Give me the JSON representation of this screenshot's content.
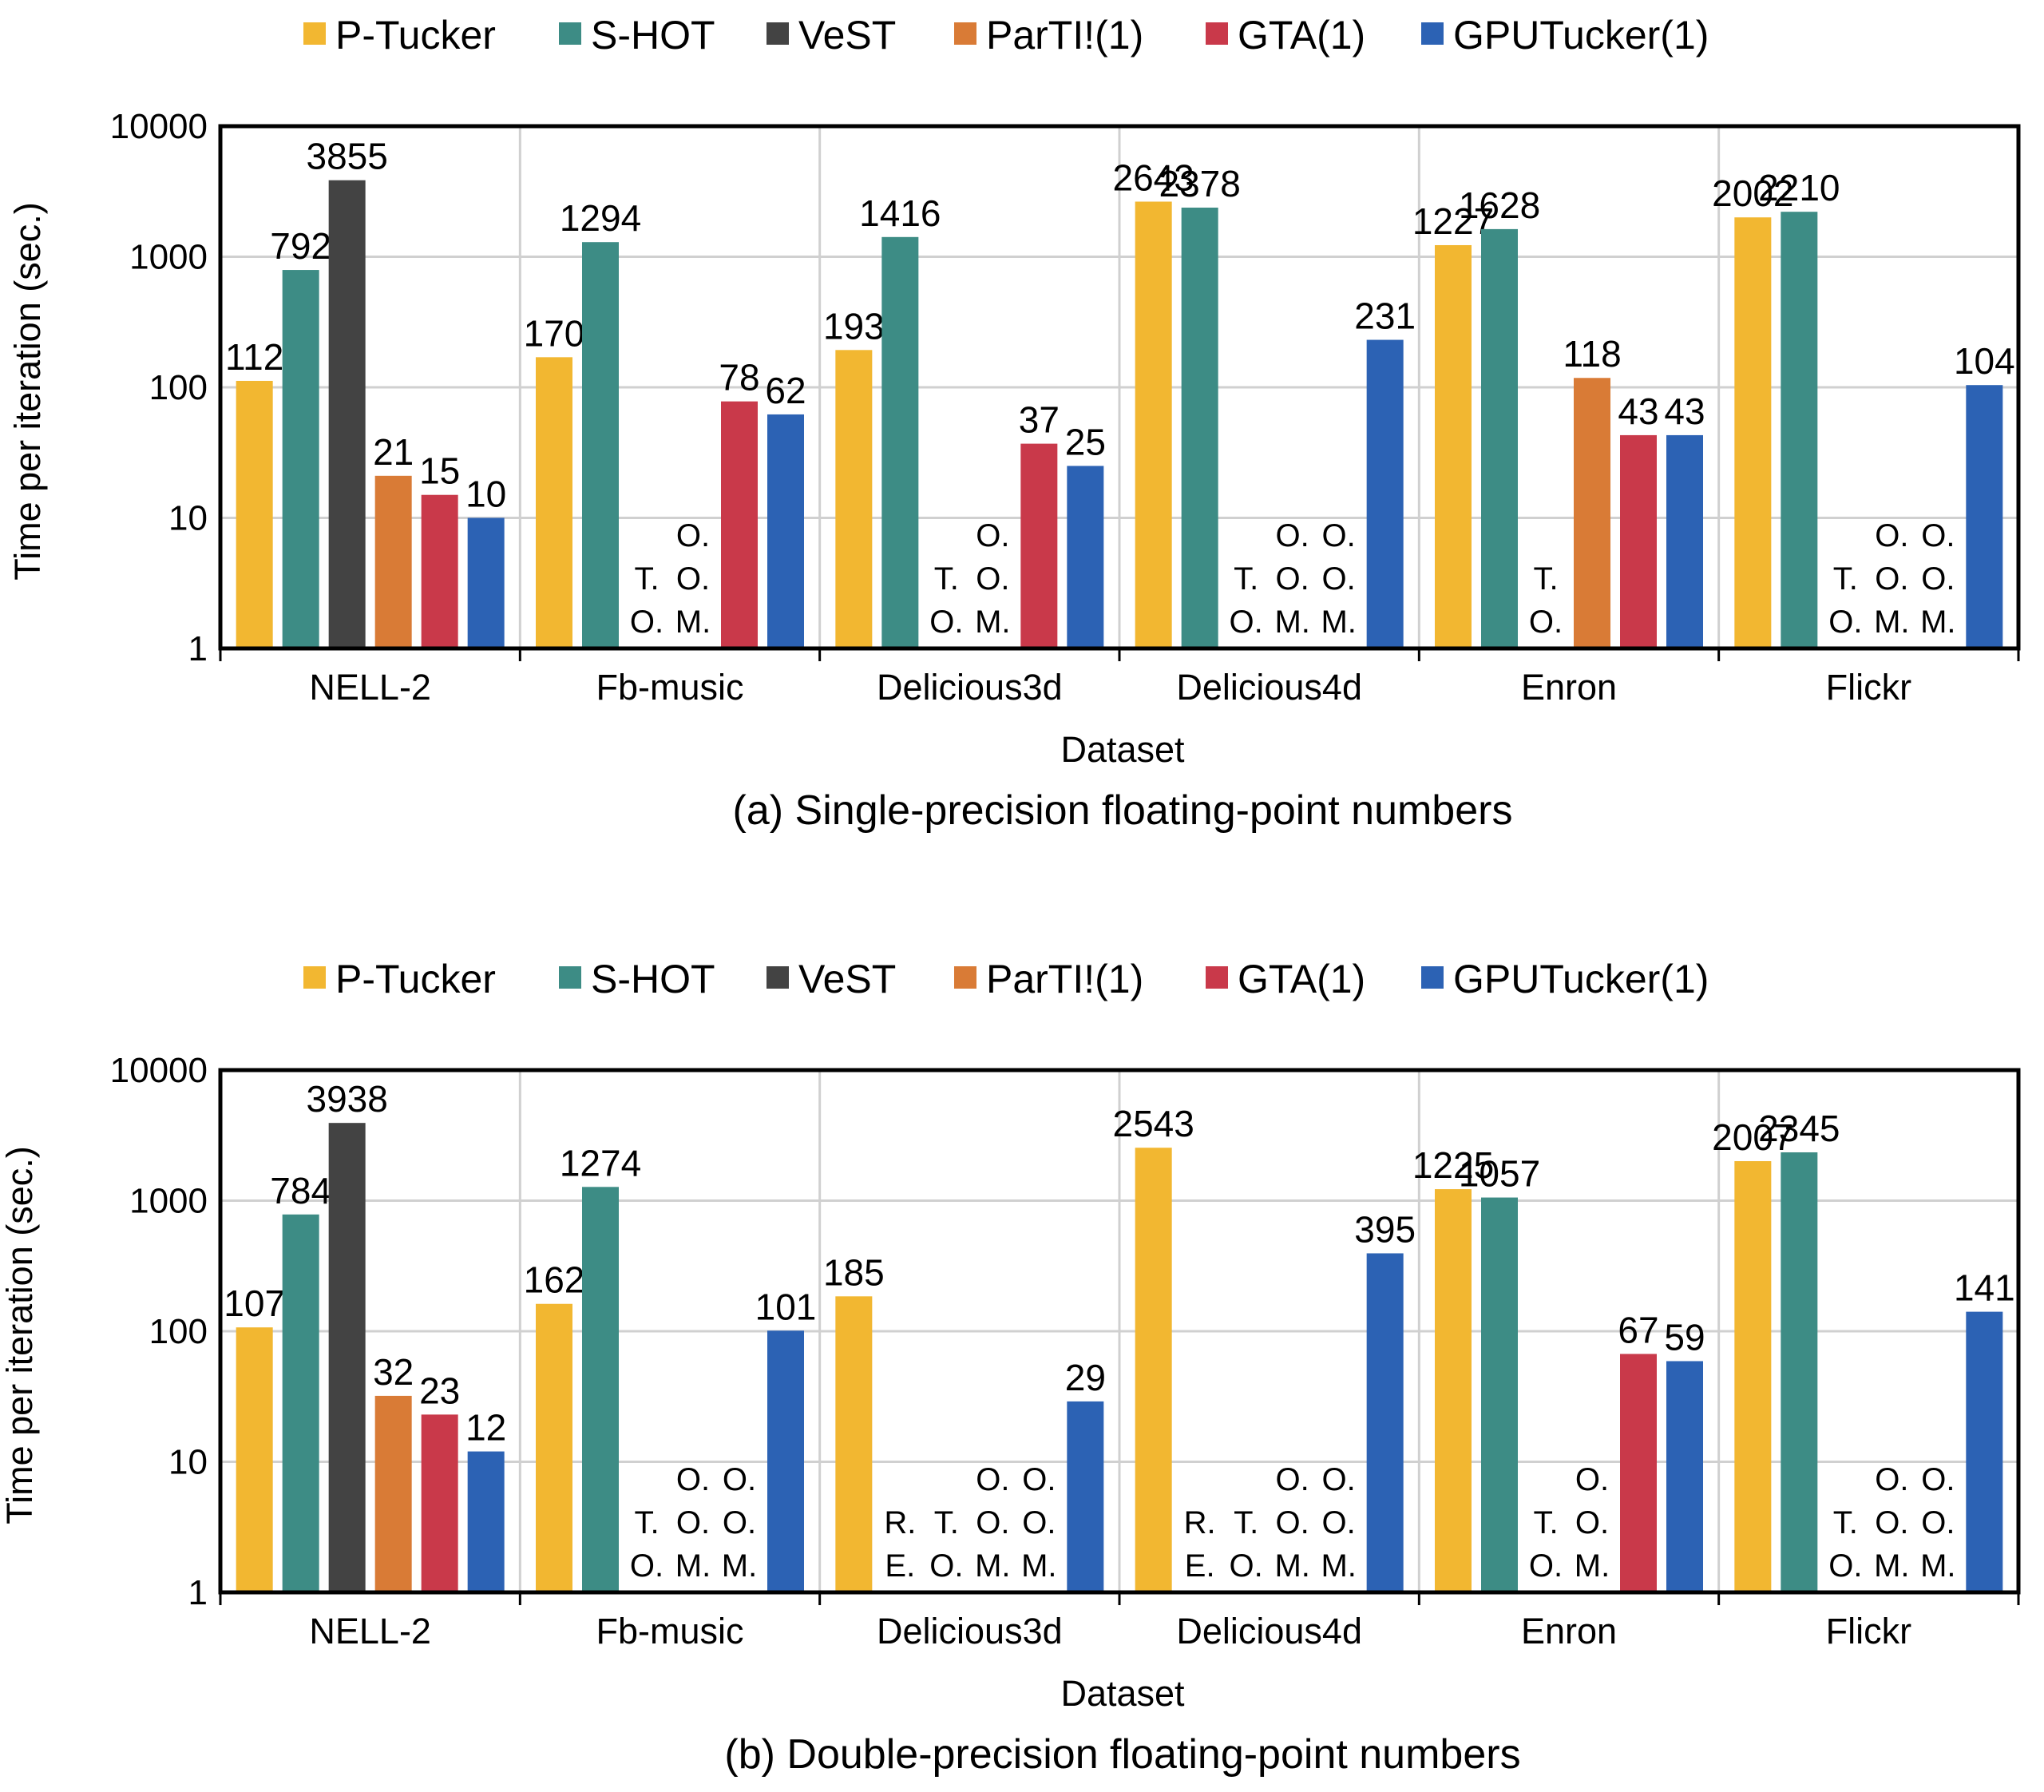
{
  "colors": {
    "P-Tucker": "#f2b731",
    "S-HOT": "#3d8c85",
    "VeST": "#434343",
    "ParTI!(1)": "#d97b36",
    "GTA(1)": "#c9394a",
    "GPUTucker(1)": "#2c62b4"
  },
  "chart_data": [
    {
      "id": "a",
      "type": "bar",
      "caption": "(a) Single-precision floating-point numbers",
      "xlabel": "Dataset",
      "ylabel": "Time per iteration (sec.)",
      "yscale": "log",
      "ylim": [
        1,
        10000
      ],
      "yticks": [
        "1",
        "10",
        "100",
        "1000",
        "10000"
      ],
      "grid": true,
      "legend_placement": "top",
      "categories": [
        "NELL-2",
        "Fb-music",
        "Delicious3d",
        "Delicious4d",
        "Enron",
        "Flickr"
      ],
      "series": [
        {
          "name": "P-Tucker",
          "values": [
            112,
            170,
            193,
            2643,
            1227,
            2002
          ],
          "labels": [
            "112",
            "170",
            "193",
            "2643",
            "1227",
            "2002"
          ]
        },
        {
          "name": "S-HOT",
          "values": [
            792,
            1294,
            1416,
            2378,
            1628,
            2210
          ],
          "labels": [
            "792",
            "1294",
            "1416",
            "2378",
            "1628",
            "2210"
          ]
        },
        {
          "name": "VeST",
          "values": [
            3855,
            null,
            null,
            null,
            null,
            null
          ],
          "labels": [
            "3855",
            "",
            "",
            "",
            "",
            ""
          ]
        },
        {
          "name": "ParTI!(1)",
          "values": [
            21,
            null,
            null,
            null,
            118,
            null
          ],
          "labels": [
            "21",
            "",
            "",
            "",
            "118",
            ""
          ]
        },
        {
          "name": "GTA(1)",
          "values": [
            15,
            78,
            37,
            null,
            43,
            null
          ],
          "labels": [
            "15",
            "78",
            "37",
            "",
            "43",
            ""
          ]
        },
        {
          "name": "GPUTucker(1)",
          "values": [
            10,
            62,
            25,
            231,
            43,
            104
          ],
          "labels": [
            "10",
            "62",
            "25",
            "231",
            "43",
            "104"
          ]
        }
      ],
      "status_notes": [
        [],
        [
          {
            "series": "VeST",
            "lines": [
              "",
              "T.",
              "O."
            ]
          },
          {
            "series": "ParTI!(1)",
            "lines": [
              "O.",
              "O.",
              "M."
            ]
          }
        ],
        [
          {
            "series": "VeST",
            "lines": [
              "",
              "T.",
              "O."
            ]
          },
          {
            "series": "ParTI!(1)",
            "lines": [
              "O.",
              "O.",
              "M."
            ]
          }
        ],
        [
          {
            "series": "VeST",
            "lines": [
              "",
              "T.",
              "O."
            ]
          },
          {
            "series": "ParTI!(1)",
            "lines": [
              "O.",
              "O.",
              "M."
            ]
          },
          {
            "series": "GTA(1)",
            "lines": [
              "O.",
              "O.",
              "M."
            ]
          }
        ],
        [
          {
            "series": "VeST",
            "lines": [
              "",
              "T.",
              "O."
            ]
          }
        ],
        [
          {
            "series": "VeST",
            "lines": [
              "",
              "T.",
              "O."
            ]
          },
          {
            "series": "ParTI!(1)",
            "lines": [
              "O.",
              "O.",
              "M."
            ]
          },
          {
            "series": "GTA(1)",
            "lines": [
              "O.",
              "O.",
              "M."
            ]
          }
        ]
      ]
    },
    {
      "id": "b",
      "type": "bar",
      "caption": "(b) Double-precision floating-point numbers",
      "xlabel": "Dataset",
      "ylabel": "Time per iteration (sec.)",
      "yscale": "log",
      "ylim": [
        1,
        10000
      ],
      "yticks": [
        "1",
        "10",
        "100",
        "1000",
        "10000"
      ],
      "grid": true,
      "legend_placement": "top",
      "categories": [
        "NELL-2",
        "Fb-music",
        "Delicious3d",
        "Delicious4d",
        "Enron",
        "Flickr"
      ],
      "series": [
        {
          "name": "P-Tucker",
          "values": [
            107,
            162,
            185,
            2543,
            1225,
            2007
          ],
          "labels": [
            "107",
            "162",
            "185",
            "2543",
            "1225",
            "2007"
          ]
        },
        {
          "name": "S-HOT",
          "values": [
            784,
            1274,
            null,
            null,
            1057,
            2345
          ],
          "labels": [
            "784",
            "1274",
            "",
            "",
            "1057",
            "2345"
          ]
        },
        {
          "name": "VeST",
          "values": [
            3938,
            null,
            null,
            null,
            null,
            null
          ],
          "labels": [
            "3938",
            "",
            "",
            "",
            "",
            ""
          ]
        },
        {
          "name": "ParTI!(1)",
          "values": [
            32,
            null,
            null,
            null,
            null,
            null
          ],
          "labels": [
            "32",
            "",
            "",
            "",
            "",
            ""
          ]
        },
        {
          "name": "GTA(1)",
          "values": [
            23,
            null,
            null,
            null,
            67,
            null
          ],
          "labels": [
            "23",
            "",
            "",
            "",
            "67",
            ""
          ]
        },
        {
          "name": "GPUTucker(1)",
          "values": [
            12,
            101,
            29,
            395,
            59,
            141
          ],
          "labels": [
            "12",
            "101",
            "29",
            "395",
            "59",
            "141"
          ]
        }
      ],
      "status_notes": [
        [],
        [
          {
            "series": "VeST",
            "lines": [
              "",
              "T.",
              "O."
            ]
          },
          {
            "series": "ParTI!(1)",
            "lines": [
              "O.",
              "O.",
              "M."
            ]
          },
          {
            "series": "GTA(1)",
            "lines": [
              "O.",
              "O.",
              "M."
            ]
          }
        ],
        [
          {
            "series": "S-HOT",
            "lines": [
              "",
              "R.",
              "E."
            ]
          },
          {
            "series": "VeST",
            "lines": [
              "",
              "T.",
              "O."
            ]
          },
          {
            "series": "ParTI!(1)",
            "lines": [
              "O.",
              "O.",
              "M."
            ]
          },
          {
            "series": "GTA(1)",
            "lines": [
              "O.",
              "O.",
              "M."
            ]
          }
        ],
        [
          {
            "series": "S-HOT",
            "lines": [
              "",
              "R.",
              "E."
            ]
          },
          {
            "series": "VeST",
            "lines": [
              "",
              "T.",
              "O."
            ]
          },
          {
            "series": "ParTI!(1)",
            "lines": [
              "O.",
              "O.",
              "M."
            ]
          },
          {
            "series": "GTA(1)",
            "lines": [
              "O.",
              "O.",
              "M."
            ]
          }
        ],
        [
          {
            "series": "VeST",
            "lines": [
              "",
              "T.",
              "O."
            ]
          },
          {
            "series": "ParTI!(1)",
            "lines": [
              "O.",
              "O.",
              "M."
            ]
          }
        ],
        [
          {
            "series": "VeST",
            "lines": [
              "",
              "T.",
              "O."
            ]
          },
          {
            "series": "ParTI!(1)",
            "lines": [
              "O.",
              "O.",
              "M."
            ]
          },
          {
            "series": "GTA(1)",
            "lines": [
              "O.",
              "O.",
              "M."
            ]
          }
        ]
      ]
    }
  ]
}
